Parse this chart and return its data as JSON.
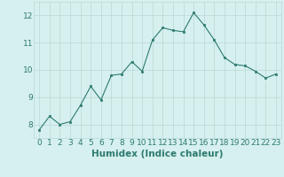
{
  "x": [
    0,
    1,
    2,
    3,
    4,
    5,
    6,
    7,
    8,
    9,
    10,
    11,
    12,
    13,
    14,
    15,
    16,
    17,
    18,
    19,
    20,
    21,
    22,
    23
  ],
  "y": [
    7.8,
    8.3,
    8.0,
    8.1,
    8.7,
    9.4,
    8.9,
    9.8,
    9.85,
    10.3,
    9.95,
    11.1,
    11.55,
    11.45,
    11.4,
    12.1,
    11.65,
    11.1,
    10.45,
    10.2,
    10.15,
    9.95,
    9.7,
    9.85
  ],
  "xlabel": "Humidex (Indice chaleur)",
  "ylim": [
    7.5,
    12.5
  ],
  "xlim": [
    -0.5,
    23.5
  ],
  "yticks": [
    8,
    9,
    10,
    11,
    12
  ],
  "xticks": [
    0,
    1,
    2,
    3,
    4,
    5,
    6,
    7,
    8,
    9,
    10,
    11,
    12,
    13,
    14,
    15,
    16,
    17,
    18,
    19,
    20,
    21,
    22,
    23
  ],
  "line_color": "#2d7a6e",
  "marker_color": "#2d7a6e",
  "bg_color": "#d6f0ef",
  "grid_color": "#b8d8d4",
  "tick_label_color": "#2d7a6e",
  "xlabel_color": "#2d7a6e",
  "axis_label_fontsize": 7.5,
  "tick_fontsize": 6.5
}
